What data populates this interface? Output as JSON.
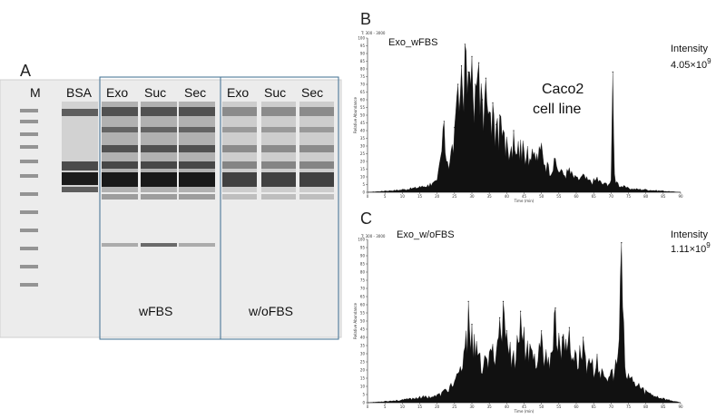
{
  "panels": {
    "a_letter": "A",
    "b_letter": "B",
    "c_letter": "C"
  },
  "gel": {
    "lanes": [
      "M",
      "BSA",
      "Exo",
      "Suc",
      "Sec",
      "Exo",
      "Suc",
      "Sec"
    ],
    "group_wfbs": "wFBS",
    "group_wofbs": "w/oFBS"
  },
  "chrom_b": {
    "title": "Exo_wFBS",
    "intensity_label": "Intensity",
    "intensity_mantissa": "4.05×10",
    "intensity_exp": "9",
    "cell_line_1": "Caco2",
    "cell_line_2": "cell line",
    "header_small": "T: 300 - 3000",
    "xlabel": "Time (min)",
    "ylabel": "Relative Abundance",
    "yticks": [
      "0",
      "5",
      "10",
      "15",
      "20",
      "25",
      "30",
      "35",
      "40",
      "45",
      "50",
      "55",
      "60",
      "65",
      "70",
      "75",
      "80",
      "85",
      "90",
      "95",
      "100"
    ],
    "xticks": [
      "0",
      "5",
      "10",
      "15",
      "20",
      "25",
      "30",
      "35",
      "40",
      "45",
      "50",
      "55",
      "60",
      "65",
      "70",
      "75",
      "80",
      "85",
      "90"
    ]
  },
  "chrom_c": {
    "title": "Exo_w/oFBS",
    "intensity_label": "Intensity",
    "intensity_mantissa": "1.11×10",
    "intensity_exp": "9",
    "header_small": "T: 300 - 3000",
    "xlabel": "Time (min)",
    "ylabel": "Relative Abundance",
    "yticks": [
      "0",
      "5",
      "10",
      "15",
      "20",
      "25",
      "30",
      "35",
      "40",
      "45",
      "50",
      "55",
      "60",
      "65",
      "70",
      "75",
      "80",
      "85",
      "90",
      "95",
      "100"
    ],
    "xticks": [
      "0",
      "5",
      "10",
      "15",
      "20",
      "25",
      "30",
      "35",
      "40",
      "45",
      "50",
      "55",
      "60",
      "65",
      "70",
      "75",
      "80",
      "85",
      "90"
    ]
  },
  "chart_data": [
    {
      "type": "area",
      "title": "Exo_wFBS",
      "xlabel": "Time (min)",
      "ylabel": "Relative Abundance",
      "xlim": [
        0,
        90
      ],
      "ylim": [
        0,
        100
      ],
      "annotation": "Intensity 4.05×10^9",
      "x": [
        0,
        5,
        10,
        15,
        18,
        20,
        22,
        23,
        25,
        26,
        27,
        28,
        29,
        30,
        31,
        32,
        33,
        34,
        35,
        36,
        37,
        38,
        40,
        42,
        44,
        46,
        48,
        50,
        52,
        54,
        56,
        58,
        60,
        62,
        64,
        66,
        68,
        70,
        70.5,
        71,
        72,
        75,
        80,
        85,
        90
      ],
      "values": [
        0,
        1,
        2,
        4,
        6,
        8,
        46,
        20,
        42,
        70,
        82,
        96,
        78,
        88,
        70,
        84,
        60,
        74,
        52,
        58,
        44,
        50,
        36,
        40,
        34,
        30,
        26,
        32,
        18,
        22,
        14,
        16,
        10,
        12,
        8,
        10,
        6,
        8,
        78,
        12,
        6,
        3,
        2,
        1,
        0
      ]
    },
    {
      "type": "area",
      "title": "Exo_w/oFBS",
      "xlabel": "Time (min)",
      "ylabel": "Relative Abundance",
      "xlim": [
        0,
        90
      ],
      "ylim": [
        0,
        100
      ],
      "annotation": "Intensity 1.11×10^9",
      "x": [
        0,
        5,
        10,
        15,
        20,
        22,
        24,
        26,
        28,
        29,
        30,
        32,
        34,
        36,
        38,
        39,
        40,
        42,
        44,
        46,
        48,
        50,
        52,
        54,
        56,
        58,
        60,
        62,
        64,
        66,
        68,
        70,
        72,
        73,
        74,
        75,
        76,
        78,
        80,
        85,
        90
      ],
      "values": [
        0,
        1,
        2,
        4,
        5,
        8,
        12,
        18,
        34,
        62,
        48,
        30,
        28,
        36,
        52,
        62,
        44,
        32,
        56,
        38,
        30,
        44,
        28,
        58,
        40,
        46,
        30,
        40,
        24,
        30,
        16,
        20,
        30,
        98,
        22,
        18,
        16,
        12,
        8,
        3,
        0
      ]
    }
  ]
}
